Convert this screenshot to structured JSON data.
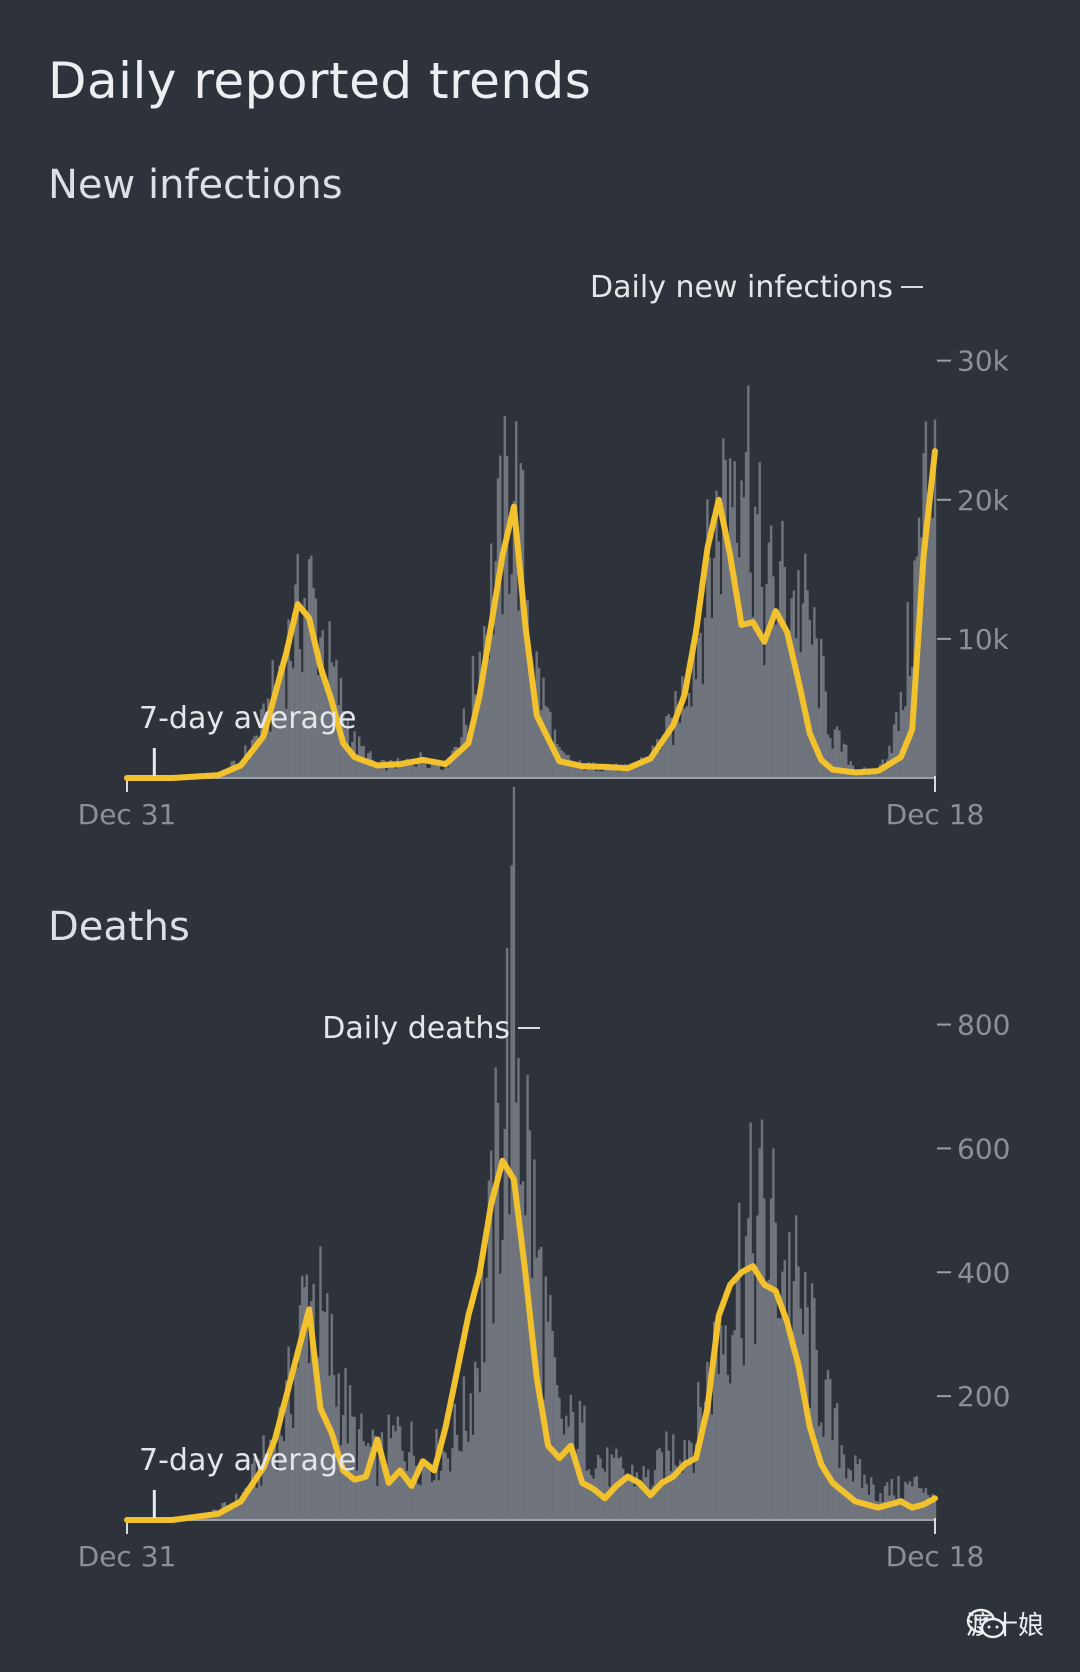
{
  "page": {
    "title": "Daily reported trends"
  },
  "sections": {
    "infections": {
      "title": "New infections"
    },
    "deaths": {
      "title": "Deaths"
    }
  },
  "watermark": {
    "text": "渡十娘",
    "icon": "wechat-icon"
  },
  "colors": {
    "background": "#2d323b",
    "average_line": "#f2c12e",
    "daily_bars": "#7c8088",
    "text": "#e4e6ea",
    "axis_text": "#8a8f98"
  },
  "chart_data": [
    {
      "type": "area",
      "title": "New infections",
      "x_start": "Dec 31",
      "x_end": "Dec 18",
      "x_tick_labels": [
        "Dec 31",
        "Dec 18"
      ],
      "y_ticks": [
        10000,
        20000,
        30000
      ],
      "y_tick_labels": [
        "10k",
        "20k",
        "30k"
      ],
      "ylim": [
        0,
        34000
      ],
      "series": [
        {
          "name": "Daily new infections",
          "kind": "bars",
          "x": [
            0,
            10,
            20,
            30,
            40,
            50,
            60,
            70,
            80,
            90,
            100,
            110,
            120,
            130,
            140,
            150,
            160,
            170,
            180,
            190,
            200,
            210,
            220,
            230,
            240,
            250,
            260,
            270,
            280,
            290,
            300,
            310,
            320,
            330,
            340,
            350,
            355
          ],
          "y": [
            0,
            0,
            0,
            100,
            250,
            1200,
            3800,
            9000,
            13500,
            7500,
            2500,
            900,
            1000,
            1400,
            900,
            4300,
            13500,
            21500,
            7500,
            1600,
            850,
            800,
            700,
            1600,
            3800,
            9500,
            18500,
            26500,
            13000,
            14000,
            11000,
            3200,
            700,
            350,
            4500,
            19000,
            27000
          ]
        },
        {
          "name": "7-day average",
          "kind": "line",
          "x": [
            0,
            10,
            20,
            30,
            40,
            50,
            60,
            70,
            75,
            80,
            85,
            90,
            95,
            100,
            110,
            120,
            130,
            140,
            150,
            155,
            160,
            165,
            170,
            175,
            180,
            190,
            200,
            210,
            220,
            230,
            240,
            245,
            250,
            255,
            260,
            265,
            270,
            275,
            280,
            285,
            290,
            295,
            300,
            305,
            310,
            320,
            330,
            340,
            345,
            350,
            355
          ],
          "y": [
            0,
            0,
            0,
            100,
            200,
            900,
            3000,
            9000,
            12500,
            11500,
            8000,
            5500,
            2500,
            1500,
            900,
            1000,
            1300,
            1000,
            2500,
            6000,
            11000,
            16000,
            19500,
            11000,
            4500,
            1200,
            850,
            800,
            700,
            1400,
            3800,
            6000,
            10500,
            16500,
            20000,
            16000,
            11000,
            11200,
            9800,
            12000,
            10500,
            7000,
            3200,
            1300,
            600,
            400,
            500,
            1500,
            3500,
            16000,
            23500
          ]
        }
      ],
      "annotations": [
        "Daily new infections",
        "7-day average"
      ]
    },
    {
      "type": "area",
      "title": "Deaths",
      "x_start": "Dec 31",
      "x_end": "Dec 18",
      "x_tick_labels": [
        "Dec 31",
        "Dec 18"
      ],
      "y_ticks": [
        200,
        400,
        600,
        800
      ],
      "y_tick_labels": [
        "200",
        "400",
        "600",
        "800"
      ],
      "ylim": [
        0,
        880
      ],
      "series": [
        {
          "name": "Daily deaths",
          "kind": "bars",
          "x": [
            0,
            10,
            20,
            30,
            40,
            50,
            60,
            70,
            80,
            90,
            100,
            110,
            120,
            130,
            140,
            150,
            160,
            170,
            180,
            190,
            200,
            210,
            220,
            230,
            240,
            250,
            260,
            270,
            280,
            290,
            300,
            310,
            320,
            330,
            340,
            350,
            355
          ],
          "y": [
            0,
            0,
            0,
            5,
            15,
            35,
            95,
            175,
            380,
            255,
            135,
            95,
            140,
            95,
            110,
            175,
            430,
            850,
            420,
            155,
            140,
            85,
            75,
            65,
            115,
            140,
            295,
            420,
            480,
            400,
            285,
            150,
            75,
            45,
            50,
            60,
            30
          ]
        },
        {
          "name": "7-day average",
          "kind": "line",
          "x": [
            0,
            10,
            20,
            30,
            40,
            50,
            60,
            65,
            70,
            75,
            80,
            85,
            90,
            95,
            100,
            105,
            110,
            115,
            120,
            125,
            130,
            135,
            140,
            145,
            150,
            155,
            160,
            165,
            170,
            175,
            180,
            185,
            190,
            195,
            200,
            205,
            210,
            215,
            220,
            225,
            230,
            235,
            240,
            245,
            250,
            255,
            260,
            265,
            270,
            275,
            280,
            285,
            290,
            295,
            300,
            305,
            310,
            320,
            330,
            340,
            345,
            350,
            355
          ],
          "y": [
            0,
            0,
            0,
            5,
            10,
            30,
            85,
            130,
            200,
            270,
            340,
            180,
            140,
            80,
            65,
            70,
            130,
            60,
            80,
            55,
            95,
            80,
            150,
            240,
            330,
            400,
            510,
            580,
            550,
            400,
            230,
            120,
            100,
            120,
            60,
            50,
            35,
            55,
            70,
            60,
            40,
            60,
            70,
            90,
            100,
            180,
            330,
            380,
            400,
            410,
            380,
            370,
            320,
            250,
            150,
            90,
            60,
            30,
            20,
            30,
            20,
            25,
            35
          ]
        }
      ],
      "annotations": [
        "Daily deaths",
        "7-day average"
      ]
    }
  ]
}
